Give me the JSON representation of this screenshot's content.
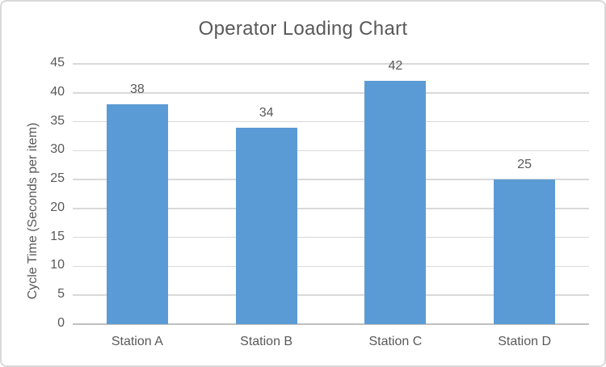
{
  "chart_data": {
    "type": "bar",
    "title": "Operator Loading Chart",
    "ylabel": "Cycle Time (Seconds per item)",
    "xlabel": "",
    "categories": [
      "Station A",
      "Station B",
      "Station C",
      "Station D"
    ],
    "values": [
      38,
      34,
      42,
      25
    ],
    "data_labels": [
      "38",
      "34",
      "42",
      "25"
    ],
    "ylim": [
      0,
      45
    ],
    "ytick_step": 5,
    "yticks": [
      0,
      5,
      10,
      15,
      20,
      25,
      30,
      35,
      40,
      45
    ],
    "grid": "horizontal",
    "legend": "none",
    "colors": {
      "bar": "#5B9BD5",
      "gridline": "#D9D9D9",
      "axis_line": "#BFBFBF",
      "text": "#595959",
      "chart_border": "#D9D9D9",
      "background": "#FFFFFF"
    }
  }
}
